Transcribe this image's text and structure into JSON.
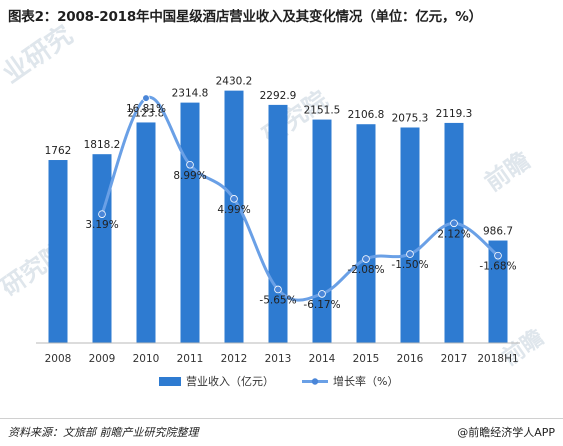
{
  "title": "图表2：2008-2018年中国星级酒店营业收入及其变化情况（单位：亿元，%）",
  "footer": {
    "source": "资料来源：文旅部 前瞻产业研究院整理",
    "brand": "@前瞻经济学人APP"
  },
  "watermark": {
    "text_a": "业研究",
    "text_b": "前瞻",
    "text_c": "研究院"
  },
  "colors": {
    "bar": "#2e7bd1",
    "line": "#6aa0e6",
    "marker": "#4a86d8"
  },
  "chart_data": {
    "type": "bar+line",
    "categories": [
      "2008",
      "2009",
      "2010",
      "2011",
      "2012",
      "2013",
      "2014",
      "2015",
      "2016",
      "2017",
      "2018H1"
    ],
    "series": [
      {
        "name": "营业收入（亿元）",
        "type": "bar",
        "axis": "left",
        "values": [
          1762,
          1818.2,
          2123.8,
          2314.8,
          2430.2,
          2292.9,
          2151.5,
          2106.8,
          2075.3,
          2119.3,
          986.7
        ],
        "labels": [
          "1762",
          "1818.2",
          "2123.8",
          "2314.8",
          "2430.2",
          "2292.9",
          "2151.5",
          "2106.8",
          "2075.3",
          "2119.3",
          "986.7"
        ]
      },
      {
        "name": "增长率（%）",
        "type": "line",
        "axis": "right",
        "values": [
          null,
          3.19,
          16.81,
          8.99,
          4.99,
          -5.65,
          -6.17,
          -2.08,
          -1.5,
          2.12,
          -1.68
        ],
        "labels": [
          "",
          "3.19%",
          "16.81%",
          "8.99%",
          "4.99%",
          "-5.65%",
          "-6.17%",
          "-2.08%",
          "-1.50%",
          "2.12%",
          "-1.68%"
        ]
      }
    ],
    "ylim_left": [
      0,
      2600
    ],
    "ylim_right": [
      -9,
      18
    ],
    "grid": false,
    "legend_position": "bottom-center"
  }
}
